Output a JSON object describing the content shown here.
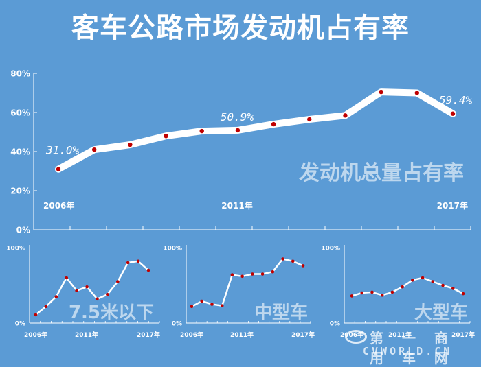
{
  "title": "客车公路市场发动机占有率",
  "colors": {
    "background": "#5b9bd5",
    "line": "#ffffff",
    "point": "#c00000",
    "label": "#bdd7ee"
  },
  "watermark": {
    "cn": "第 一 商 用 车 网",
    "en": "CVWORLD.CN"
  },
  "chart_data": [
    {
      "type": "line",
      "title": "发动机总量占有率",
      "x": [
        2006,
        2007,
        2008,
        2009,
        2010,
        2011,
        2012,
        2013,
        2014,
        2015,
        2016,
        2017
      ],
      "x_tick_labels": [
        "2006年",
        "2011年",
        "2017年"
      ],
      "y_tick_labels": [
        "0%",
        "20%",
        "40%",
        "60%",
        "80%"
      ],
      "ylim": [
        0,
        80
      ],
      "values": [
        31.0,
        41,
        43.5,
        48,
        50.5,
        50.9,
        54,
        56.5,
        58.5,
        70.5,
        70,
        59.4
      ],
      "annotations": [
        "31.0%",
        "50.9%",
        "59.4%"
      ]
    },
    {
      "type": "line",
      "title": "7.5米以下",
      "x": [
        2006,
        2007,
        2008,
        2009,
        2010,
        2011,
        2012,
        2013,
        2014,
        2015,
        2016,
        2017
      ],
      "x_tick_labels": [
        "2006年",
        "2011年",
        "2017年"
      ],
      "y_tick_labels": [
        "0%",
        "100%"
      ],
      "ylim": [
        0,
        100
      ],
      "values": [
        11,
        22,
        35,
        60,
        43,
        48,
        32,
        38,
        55,
        80,
        82,
        70
      ]
    },
    {
      "type": "line",
      "title": "中型车",
      "x": [
        2006,
        2007,
        2008,
        2009,
        2010,
        2011,
        2012,
        2013,
        2014,
        2015,
        2016,
        2017
      ],
      "x_tick_labels": [
        "2006年",
        "2011年",
        "2017年"
      ],
      "y_tick_labels": [
        "0%",
        "100%"
      ],
      "ylim": [
        0,
        100
      ],
      "values": [
        22,
        29,
        25,
        23,
        64,
        62,
        65,
        65,
        68,
        85,
        82,
        76
      ]
    },
    {
      "type": "line",
      "title": "大型车",
      "x": [
        2006,
        2007,
        2008,
        2009,
        2010,
        2011,
        2012,
        2013,
        2014,
        2015,
        2016,
        2017
      ],
      "x_tick_labels": [
        "2006年",
        "2011年",
        "2017年"
      ],
      "y_tick_labels": [
        "0%",
        "100%"
      ],
      "ylim": [
        0,
        100
      ],
      "values": [
        36,
        40,
        41,
        37,
        41,
        48,
        57,
        60,
        55,
        50,
        46,
        39
      ]
    }
  ]
}
